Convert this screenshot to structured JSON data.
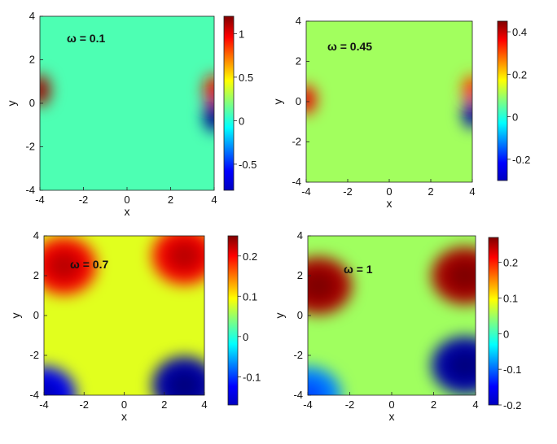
{
  "chart_data": [
    {
      "type": "heatmap",
      "annotation": "ω = 0.1",
      "xlabel": "x",
      "ylabel": "y",
      "xlim": [
        -4,
        4
      ],
      "ylim": [
        -4,
        4
      ],
      "xticks": [
        "-4",
        "-2",
        "0",
        "2",
        "4"
      ],
      "yticks": [
        "-4",
        "-2",
        "0",
        "2",
        "4"
      ],
      "colorbar": {
        "range": [
          -0.8,
          1.2
        ],
        "ticks": [
          -0.5,
          0,
          0.5,
          1
        ],
        "tick_labels": [
          "-0.5",
          "0",
          "0.5",
          "1"
        ]
      },
      "background_value": 0.1,
      "features": [
        {
          "x": -4,
          "y": 0.6,
          "value": 1.1
        },
        {
          "x": 4,
          "y": 0.6,
          "value": 0.9
        },
        {
          "x": 4,
          "y": -0.6,
          "value": -0.75
        }
      ]
    },
    {
      "type": "heatmap",
      "annotation": "ω = 0.45",
      "xlabel": "x",
      "ylabel": "y",
      "xlim": [
        -4,
        4
      ],
      "ylim": [
        -4,
        4
      ],
      "xticks": [
        "-4",
        "-2",
        "0",
        "2",
        "4"
      ],
      "yticks": [
        "-4",
        "-2",
        "0",
        "2",
        "4"
      ],
      "colorbar": {
        "range": [
          -0.3,
          0.45
        ],
        "ticks": [
          -0.2,
          0,
          0.2,
          0.4
        ],
        "tick_labels": [
          "-0.2",
          "0",
          "0.2",
          "0.4"
        ]
      },
      "background_value": 0.1,
      "features": [
        {
          "x": -4,
          "y": 0.1,
          "value": 0.35
        },
        {
          "x": 4,
          "y": 0.6,
          "value": 0.3
        },
        {
          "x": 4,
          "y": -0.6,
          "value": -0.25
        }
      ]
    },
    {
      "type": "heatmap",
      "annotation": "ω = 0.7",
      "xlabel": "x",
      "ylabel": "y",
      "xlim": [
        -4,
        4
      ],
      "ylim": [
        -4,
        4
      ],
      "xticks": [
        "-4",
        "-2",
        "0",
        "2",
        "4"
      ],
      "yticks": [
        "-4",
        "-2",
        "0",
        "2",
        "4"
      ],
      "colorbar": {
        "range": [
          -0.17,
          0.25
        ],
        "ticks": [
          -0.1,
          0,
          0.1,
          0.2
        ],
        "tick_labels": [
          "-0.1",
          "0",
          "0.1",
          "0.2"
        ]
      },
      "background_value": 0.08,
      "features": [
        {
          "x": -3,
          "y": 2.5,
          "value": 0.2
        },
        {
          "x": 3,
          "y": 3,
          "value": 0.2
        },
        {
          "x": -4,
          "y": -4,
          "value": -0.12
        },
        {
          "x": 3,
          "y": -3.5,
          "value": -0.15
        }
      ]
    },
    {
      "type": "heatmap",
      "annotation": "ω = 1",
      "xlabel": "x",
      "ylabel": "y",
      "xlim": [
        -4,
        4
      ],
      "ylim": [
        -4,
        4
      ],
      "xticks": [
        "-4",
        "-2",
        "0",
        "2",
        "4"
      ],
      "yticks": [
        "-4",
        "-2",
        "0",
        "2",
        "4"
      ],
      "colorbar": {
        "range": [
          -0.2,
          0.27
        ],
        "ticks": [
          -0.2,
          -0.1,
          0,
          0.1,
          0.2
        ],
        "tick_labels": [
          "-0.2",
          "-0.1",
          "0",
          "0.1",
          "0.2"
        ]
      },
      "background_value": 0.05,
      "features": [
        {
          "x": -3.5,
          "y": 1.5,
          "value": 0.25
        },
        {
          "x": 3.5,
          "y": 2,
          "value": 0.25
        },
        {
          "x": -4,
          "y": -4,
          "value": -0.08
        },
        {
          "x": 3.5,
          "y": -2.5,
          "value": -0.18
        }
      ]
    }
  ]
}
